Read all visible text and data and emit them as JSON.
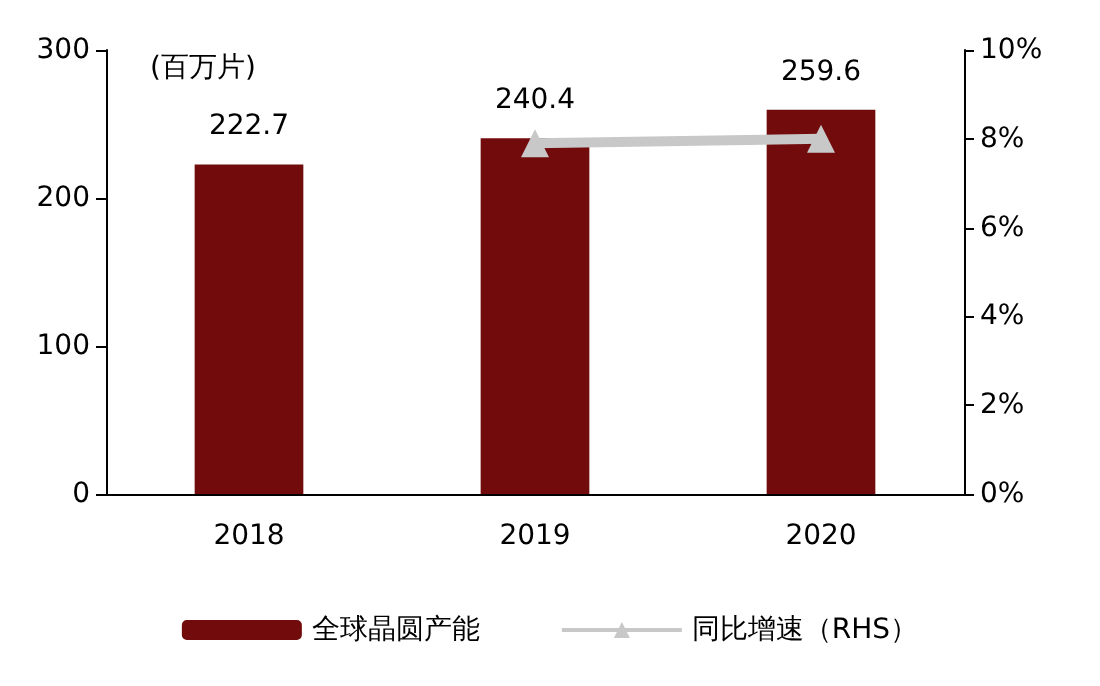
{
  "chart_data": {
    "type": "bar",
    "ylabel": "(百万片)",
    "categories": [
      "2018",
      "2019",
      "2020"
    ],
    "series": [
      {
        "name": "全球晶圆产能",
        "color": "#720c0c",
        "values": [
          222.7,
          240.4,
          259.6
        ],
        "value_labels": [
          "222.7",
          "240.4",
          "259.6"
        ]
      },
      {
        "name": "同比增速（RHS）",
        "type": "line",
        "axis": "y2",
        "color": "#c8c8c8",
        "marker": "triangle",
        "values": [
          null,
          7.9,
          8.0
        ]
      }
    ],
    "ylim": [
      0,
      300
    ],
    "yticks": [
      0,
      100,
      200,
      300
    ],
    "y2lim": [
      0,
      10
    ],
    "y2ticks": [
      {
        "value": 0,
        "label": "0%"
      },
      {
        "value": 2,
        "label": "2%"
      },
      {
        "value": 4,
        "label": "4%"
      },
      {
        "value": 6,
        "label": "6%"
      },
      {
        "value": 8,
        "label": "8%"
      },
      {
        "value": 10,
        "label": "10%"
      }
    ],
    "grid": false,
    "legend": "bottom"
  }
}
